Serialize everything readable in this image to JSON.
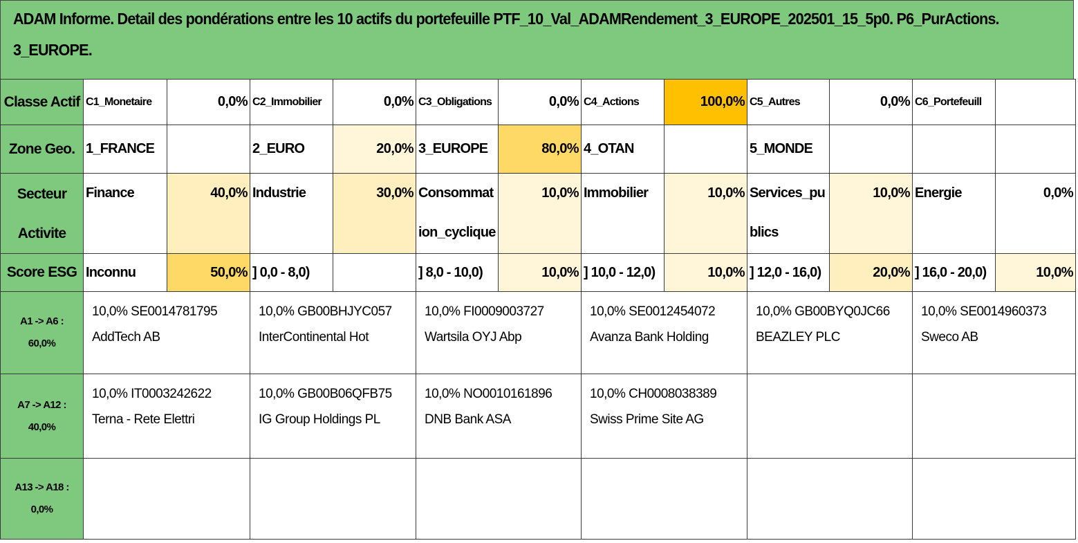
{
  "title_line1": "ADAM Informe. Detail des pondérations entre les 10 actifs du portefeuille PTF_10_Val_ADAMRendement_3_EUROPE_202501_15_5p0. P6_PurActions.",
  "title_line2": "3_EUROPE.",
  "classe": {
    "label": "Classe Actif",
    "items": [
      {
        "name": "C1_Monetaire",
        "pct": "0,0%"
      },
      {
        "name": "C2_Immobilier",
        "pct": "0,0%"
      },
      {
        "name": "C3_Obligations",
        "pct": "0,0%"
      },
      {
        "name": "C4_Actions",
        "pct": "100,0%"
      },
      {
        "name": "C5_Autres",
        "pct": "0,0%"
      },
      {
        "name": "C6_Portefeuill",
        "pct": ""
      }
    ]
  },
  "zone": {
    "label": "Zone Geo.",
    "items": [
      {
        "name": "1_FRANCE",
        "pct": ""
      },
      {
        "name": "2_EURO",
        "pct": "20,0%"
      },
      {
        "name": "3_EUROPE",
        "pct": "80,0%"
      },
      {
        "name": "4_OTAN",
        "pct": ""
      },
      {
        "name": "5_MONDE",
        "pct": ""
      },
      {
        "name": "",
        "pct": ""
      }
    ]
  },
  "secteur": {
    "label_line1": "Secteur",
    "label_line2": "Activite",
    "items": [
      {
        "name": "Finance",
        "pct": "40,0%"
      },
      {
        "name": "Industrie",
        "pct": "30,0%"
      },
      {
        "name": "Consommation_cyclique",
        "pct": "10,0%"
      },
      {
        "name": "Immobilier",
        "pct": "10,0%"
      },
      {
        "name": "Services_publics",
        "pct": "10,0%"
      },
      {
        "name": "Energie",
        "pct": "0,0%"
      }
    ]
  },
  "esg": {
    "label": "Score ESG",
    "items": [
      {
        "name": "Inconnu",
        "pct": "50,0%"
      },
      {
        "name": "] 0,0 - 8,0)",
        "pct": ""
      },
      {
        "name": "] 8,0 - 10,0)",
        "pct": "10,0%"
      },
      {
        "name": "] 10,0 - 12,0)",
        "pct": "10,0%"
      },
      {
        "name": "] 12,0 - 16,0)",
        "pct": "20,0%"
      },
      {
        "name": "] 16,0 - 20,0)",
        "pct": "10,0%"
      }
    ]
  },
  "groups": [
    {
      "label_line1": "A1 -> A6 :",
      "label_line2": "60,0%",
      "assets": [
        {
          "line1": "10,0% SE0014781795",
          "line2": "AddTech AB"
        },
        {
          "line1": "10,0% GB00BHJYC057",
          "line2": "InterContinental Hot"
        },
        {
          "line1": "10,0% FI0009003727",
          "line2": "Wartsila OYJ Abp"
        },
        {
          "line1": "10,0% SE0012454072",
          "line2": "Avanza Bank Holding"
        },
        {
          "line1": "10,0% GB00BYQ0JC66",
          "line2": "BEAZLEY PLC"
        },
        {
          "line1": "10,0% SE0014960373",
          "line2": "Sweco AB"
        }
      ]
    },
    {
      "label_line1": "A7 -> A12 :",
      "label_line2": "40,0%",
      "assets": [
        {
          "line1": "10,0% IT0003242622",
          "line2": "Terna - Rete Elettri"
        },
        {
          "line1": "10,0% GB00B06QFB75",
          "line2": "IG Group Holdings PL"
        },
        {
          "line1": "10,0% NO0010161896",
          "line2": "DNB Bank ASA"
        },
        {
          "line1": "10,0% CH0008038389",
          "line2": "Swiss Prime Site AG"
        },
        {
          "line1": "",
          "line2": ""
        },
        {
          "line1": "",
          "line2": ""
        }
      ]
    },
    {
      "label_line1": "A13 -> A18 :",
      "label_line2": "0,0%",
      "assets": [
        {
          "line1": "",
          "line2": ""
        },
        {
          "line1": "",
          "line2": ""
        },
        {
          "line1": "",
          "line2": ""
        },
        {
          "line1": "",
          "line2": ""
        },
        {
          "line1": "",
          "line2": ""
        },
        {
          "line1": "",
          "line2": ""
        }
      ]
    }
  ]
}
